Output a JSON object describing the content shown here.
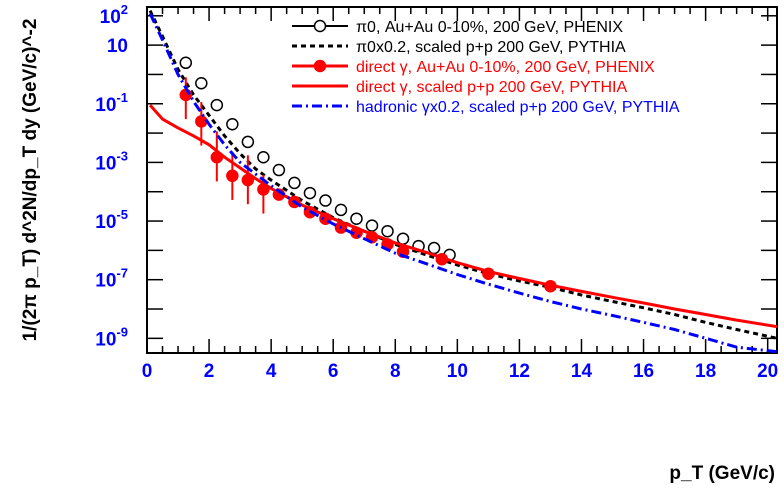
{
  "chart_data": {
    "type": "line",
    "xlabel": "p_T (GeV/c)",
    "ylabel": "1/(2π p_T) d^2N/dp_T dy (GeV/c)^-2",
    "xlim": [
      0,
      20.3
    ],
    "ylog": true,
    "ylim_log10": [
      -9.5,
      2.3
    ],
    "x_ticks": [
      0,
      2,
      4,
      6,
      8,
      10,
      12,
      14,
      16,
      18,
      20
    ],
    "y_tick_exponents": [
      -9,
      -7,
      -5,
      -3,
      -1,
      1,
      2
    ],
    "legend_position": "top-right",
    "series": [
      {
        "name": "π0, Au+Au 0-10%, 200 GeV, PHENIX",
        "color": "#000000",
        "style": "open-circle",
        "x": [
          1.25,
          1.75,
          2.25,
          2.75,
          3.25,
          3.75,
          4.25,
          4.75,
          5.25,
          5.75,
          6.25,
          6.75,
          7.25,
          7.75,
          8.25,
          8.75,
          9.25,
          9.75
        ],
        "y": [
          2.5,
          0.5,
          0.09,
          0.02,
          0.005,
          0.0015,
          0.00055,
          0.0002,
          9e-05,
          5e-05,
          2.4e-05,
          1.2e-05,
          7e-06,
          4.5e-06,
          2.5e-06,
          1.4e-06,
          1.2e-06,
          7e-07
        ]
      },
      {
        "name": "π0x0.2, scaled p+p 200 GeV, PYTHIA",
        "color": "#000000",
        "style": "dashed",
        "x": [
          0.1,
          0.5,
          1.0,
          1.5,
          2.0,
          2.5,
          3.0,
          3.5,
          4.0,
          5.0,
          6.0,
          7.0,
          8.0,
          9.0,
          10.0,
          11.0,
          12.0,
          13.0,
          14.0,
          15.0,
          16.0,
          17.0,
          18.0,
          19.0,
          20.3
        ],
        "y": [
          150,
          20,
          1.5,
          0.2,
          0.04,
          0.008,
          0.002,
          0.0006,
          0.00025,
          5e-05,
          1.3e-05,
          4.5e-06,
          1.6e-06,
          7e-07,
          3.2e-07,
          1.6e-07,
          9e-08,
          5.5e-08,
          3e-08,
          1.8e-08,
          1.1e-08,
          6.5e-09,
          3.5e-09,
          2e-09,
          1e-09
        ]
      },
      {
        "name": "direct γ, Au+Au 0-10%, 200 GeV, PHENIX",
        "color": "#ff0000",
        "style": "filled-circle",
        "x": [
          1.25,
          1.75,
          2.25,
          2.75,
          3.25,
          3.75,
          4.25,
          4.75,
          5.25,
          5.75,
          6.25,
          6.75,
          7.25,
          7.75,
          8.25,
          9.5,
          11.0,
          13.0
        ],
        "y": [
          0.2,
          0.025,
          0.0015,
          0.00035,
          0.00025,
          0.00012,
          8e-05,
          4.5e-05,
          2e-05,
          1.2e-05,
          6e-06,
          4e-06,
          2.8e-06,
          1.6e-06,
          9e-07,
          5e-07,
          1.6e-07,
          6e-08
        ],
        "y_err": [
          0.6,
          0.09,
          0.01,
          0.002,
          0.0015,
          0.00025,
          0,
          0,
          0,
          0,
          0,
          0,
          0,
          0,
          0,
          0,
          0,
          0
        ]
      },
      {
        "name": "direct γ, scaled p+p 200 GeV, PYTHIA",
        "color": "#ff0000",
        "style": "solid",
        "x": [
          0.1,
          0.5,
          1.0,
          1.5,
          2.0,
          2.5,
          3.0,
          3.5,
          4.0,
          5.0,
          6.0,
          7.0,
          8.0,
          9.0,
          10.0,
          11.0,
          12.0,
          13.0,
          14.0,
          15.0,
          16.0,
          17.0,
          18.0,
          19.0,
          20.3
        ],
        "y": [
          0.09,
          0.03,
          0.015,
          0.008,
          0.004,
          0.0015,
          0.00065,
          0.00028,
          0.00013,
          3.5e-05,
          1.2e-05,
          4.5e-06,
          1.8e-06,
          8.5e-07,
          3.8e-07,
          1.9e-07,
          1.1e-07,
          6.5e-08,
          4e-08,
          2.5e-08,
          1.6e-08,
          1e-08,
          6.5e-09,
          4.2e-09,
          2.5e-09
        ]
      },
      {
        "name": "hadronic γx0.2, scaled p+p 200 GeV, PYTHIA",
        "color": "#0000ff",
        "style": "dash-dot",
        "x": [
          0.1,
          0.5,
          1.0,
          1.5,
          2.0,
          2.5,
          3.0,
          3.5,
          4.0,
          5.0,
          6.0,
          7.0,
          8.0,
          9.0,
          10.0,
          11.0,
          12.0,
          13.0,
          14.0,
          15.0,
          16.0,
          17.0,
          18.0,
          19.0,
          20.3
        ],
        "y": [
          120,
          15,
          1.0,
          0.12,
          0.02,
          0.004,
          0.001,
          0.0004,
          0.00016,
          3e-05,
          8e-06,
          2.5e-06,
          8e-07,
          3.5e-07,
          1.5e-07,
          7e-08,
          3.5e-08,
          1.8e-08,
          1e-08,
          6e-09,
          3.5e-09,
          2e-09,
          1e-09,
          5e-10,
          3.5e-10
        ]
      }
    ]
  }
}
